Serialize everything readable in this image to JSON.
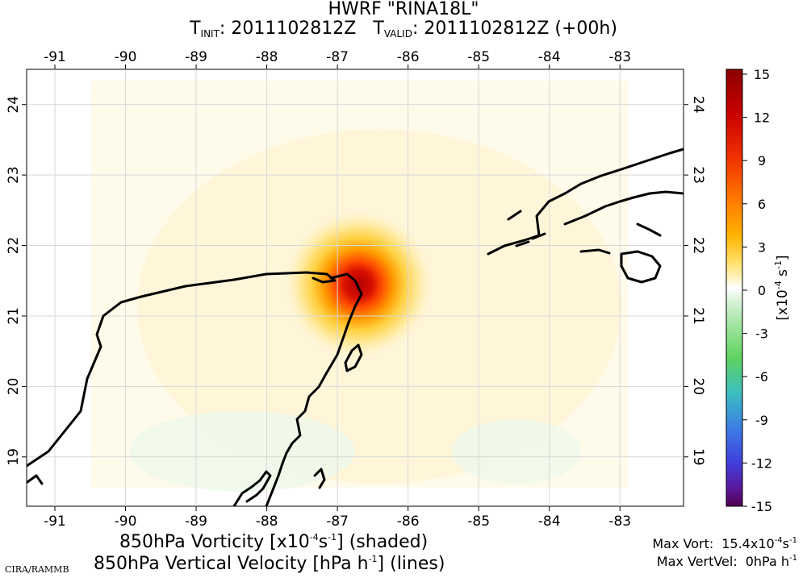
{
  "title": {
    "model": "HWRF \"RINA18L\"",
    "t_init_label": "T",
    "t_init_sub": "INIT",
    "t_init_value": "2011102812Z",
    "t_valid_label": "T",
    "t_valid_sub": "VALID",
    "t_valid_value": "2011102812Z (+00h)"
  },
  "map": {
    "lon_range": [
      -91.4,
      -82.1
    ],
    "lat_range": [
      18.3,
      24.5
    ],
    "lon_ticks": [
      -91,
      -90,
      -89,
      -88,
      -87,
      -86,
      -85,
      -84,
      -83
    ],
    "lat_ticks": [
      19,
      20,
      21,
      22,
      23,
      24
    ],
    "lon_tick_labels": [
      "-91",
      "-90",
      "-89",
      "-88",
      "-87",
      "-86",
      "-85",
      "-84",
      "-83"
    ],
    "lat_tick_labels": [
      "19",
      "20",
      "21",
      "22",
      "23",
      "24"
    ],
    "vortex_center": {
      "lon": -86.7,
      "lat": 21.45
    },
    "grid": true
  },
  "colorbar": {
    "ticks": [
      "15",
      "12",
      "9",
      "6",
      "3",
      "0",
      "-3",
      "-6",
      "-9",
      "-12",
      "-15"
    ],
    "range": [
      -15,
      15
    ],
    "units_prefix": "[x10",
    "units_exp": "-4",
    "units_mid": " s",
    "units_exp2": "-1",
    "units_suffix": "]",
    "colors": [
      "#500050",
      "#5a189a",
      "#3f3fdc",
      "#3c7fe6",
      "#3cbfbf",
      "#5fd35f",
      "#a6e6a6",
      "#ffffff",
      "#fff3c4",
      "#ffe066",
      "#ffb200",
      "#ff7a00",
      "#f03000",
      "#c80000",
      "#8c0000"
    ]
  },
  "footer": {
    "line1_a": "850hPa Vorticity [x10",
    "line1_exp": "-4",
    "line1_b": "s",
    "line1_exp2": "-1",
    "line1_c": "] (shaded)",
    "line2_a": "850hPa Vertical Velocity [hPa h",
    "line2_exp": "-1",
    "line2_c": "] (lines)",
    "credit": "CIRA/RAMMB"
  },
  "stats": {
    "max_vort_label": "Max Vort:",
    "max_vort_value": "15.4x10",
    "max_vort_exp": "-4",
    "max_vort_unit": "s",
    "max_vort_exp2": "-1",
    "max_vertvel_label": "Max VertVel:",
    "max_vertvel_value": "0hPa h",
    "max_vertvel_exp": "-1"
  }
}
